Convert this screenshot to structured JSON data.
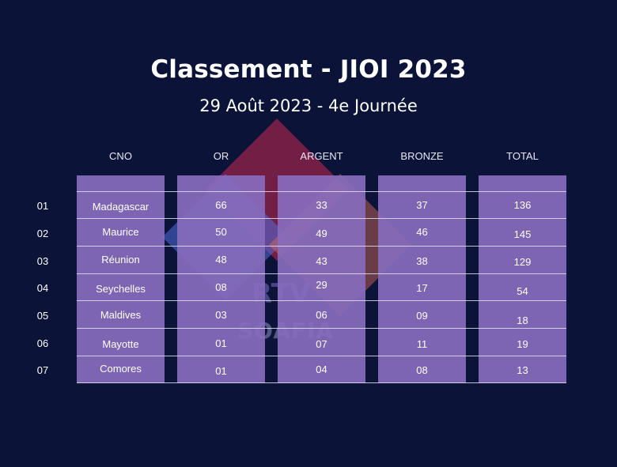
{
  "title": "Classement - JIOI 2023",
  "subtitle": "29 Août 2023 - 4e Journée",
  "watermark": {
    "line1": "RTV",
    "line2": "SOAFIA"
  },
  "columns": [
    "CNO",
    "OR",
    "ARGENT",
    "BRONZE",
    "TOTAL"
  ],
  "rows": [
    {
      "rank": "01",
      "cno": "Madagascar",
      "or": "66",
      "argent": "33",
      "bronze": "37",
      "total": "136"
    },
    {
      "rank": "02",
      "cno": "Maurice",
      "or": "50",
      "argent": "49",
      "bronze": "46",
      "total": "145"
    },
    {
      "rank": "03",
      "cno": "Réunion",
      "or": "48",
      "argent": "43",
      "bronze": "38",
      "total": "129"
    },
    {
      "rank": "04",
      "cno": "Seychelles",
      "or": "08",
      "argent": "29",
      "bronze": "17",
      "total": "54"
    },
    {
      "rank": "05",
      "cno": "Maldives",
      "or": "03",
      "argent": "06",
      "bronze": "09",
      "total": "18"
    },
    {
      "rank": "06",
      "cno": "Mayotte",
      "or": "01",
      "argent": "07",
      "bronze": "11",
      "total": "19"
    },
    {
      "rank": "07",
      "cno": "Comores",
      "or": "01",
      "argent": "04",
      "bronze": "08",
      "total": "13"
    }
  ],
  "colors": {
    "background": "#0c1338",
    "column": "#886cbe",
    "text": "#ffffff"
  }
}
